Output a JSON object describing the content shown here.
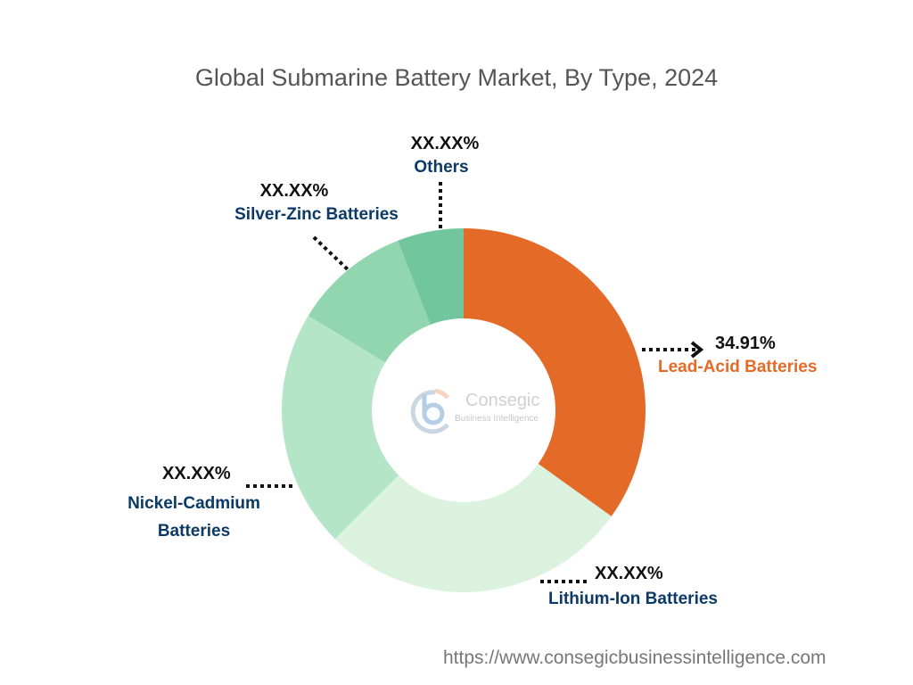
{
  "chart_data": {
    "type": "pie",
    "subtype": "donut",
    "title": "Global Submarine Battery Market, By Type, 2024",
    "slices": [
      {
        "label": "Lead-Acid Batteries",
        "value_label": "34.91%",
        "value": 34.91,
        "color": "#E46A27",
        "label_color": "#E46A27"
      },
      {
        "label": "Lithium-Ion Batteries",
        "value_label": "XX.XX%",
        "value": 27.6,
        "color": "#DAF2DE",
        "label_color": "#0B3A66"
      },
      {
        "label_lines": [
          "Nickel-Cadmium",
          "Batteries"
        ],
        "label": "Nickel-Cadmium Batteries",
        "value_label": "XX.XX%",
        "value": 21.2,
        "color": "#B5E5C7",
        "label_color": "#0B3A66"
      },
      {
        "label": "Silver-Zinc Batteries",
        "value_label": "XX.XX%",
        "value": 10.4,
        "color": "#92D6B0",
        "label_color": "#0B3A66"
      },
      {
        "label": "Others",
        "value_label": "XX.XX%",
        "value": 5.9,
        "color": "#72C69D",
        "label_color": "#0B3A66"
      }
    ],
    "legend": "none"
  },
  "logo": {
    "name": "Consegic",
    "tagline": "Business Intelligence"
  },
  "footer": "https://www.consegicbusinessintelligence.com"
}
